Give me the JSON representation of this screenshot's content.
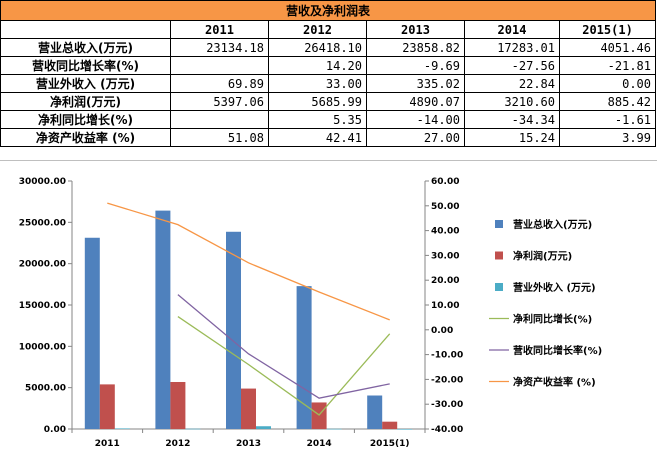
{
  "table": {
    "title": "营收及净利润表",
    "columns": [
      "2011",
      "2012",
      "2013",
      "2014",
      "2015(1)"
    ],
    "rows": [
      {
        "label": "营业总收入(万元)",
        "values": [
          "23134.18",
          "26418.10",
          "23858.82",
          "17283.01",
          "4051.46"
        ]
      },
      {
        "label": "营收同比增长率(%)",
        "values": [
          "",
          "14.20",
          "-9.69",
          "-27.56",
          "-21.81"
        ]
      },
      {
        "label": "营业外收入 (万元)",
        "values": [
          "69.89",
          "33.00",
          "335.02",
          "22.84",
          "0.00"
        ]
      },
      {
        "label": "净利润(万元)",
        "values": [
          "5397.06",
          "5685.99",
          "4890.07",
          "3210.60",
          "885.42"
        ]
      },
      {
        "label": "净利同比增长(%)",
        "values": [
          "",
          "5.35",
          "-14.00",
          "-34.34",
          "-1.61"
        ]
      },
      {
        "label": "净资产收益率 (%)",
        "values": [
          "51.08",
          "42.41",
          "27.00",
          "15.24",
          "3.99"
        ]
      }
    ]
  },
  "chart_data": {
    "type": "bar",
    "categories": [
      "2011",
      "2012",
      "2013",
      "2014",
      "2015(1)"
    ],
    "ylim_left": [
      0,
      30000
    ],
    "yticks_left": [
      "0.00",
      "5000.00",
      "10000.00",
      "15000.00",
      "20000.00",
      "25000.00",
      "30000.00"
    ],
    "ylim_right": [
      -40,
      60
    ],
    "yticks_right": [
      "-40.00",
      "-30.00",
      "-20.00",
      "-10.00",
      "0.00",
      "10.00",
      "20.00",
      "30.00",
      "40.00",
      "50.00",
      "60.00"
    ],
    "grid": false,
    "legend_position": "right",
    "bar_series": [
      {
        "name": "营业总收入(万元)",
        "color": "#4f81bd",
        "values": [
          23134.18,
          26418.1,
          23858.82,
          17283.01,
          4051.46
        ]
      },
      {
        "name": "净利润(万元)",
        "color": "#c0504d",
        "values": [
          5397.06,
          5685.99,
          4890.07,
          3210.6,
          885.42
        ]
      },
      {
        "name": "营业外收入 (万元)",
        "color": "#4bacc6",
        "values": [
          69.89,
          33.0,
          335.02,
          22.84,
          0.0
        ]
      }
    ],
    "line_series": [
      {
        "name": "净利同比增长(%)",
        "color": "#9bbb59",
        "values": [
          null,
          5.35,
          -14.0,
          -34.34,
          -1.61
        ]
      },
      {
        "name": "营收同比增长率(%)",
        "color": "#8064a2",
        "values": [
          null,
          14.2,
          -9.69,
          -27.56,
          -21.81
        ]
      },
      {
        "name": "净资产收益率 (%)",
        "color": "#f79646",
        "values": [
          51.08,
          42.41,
          27.0,
          15.24,
          3.99
        ]
      }
    ]
  }
}
